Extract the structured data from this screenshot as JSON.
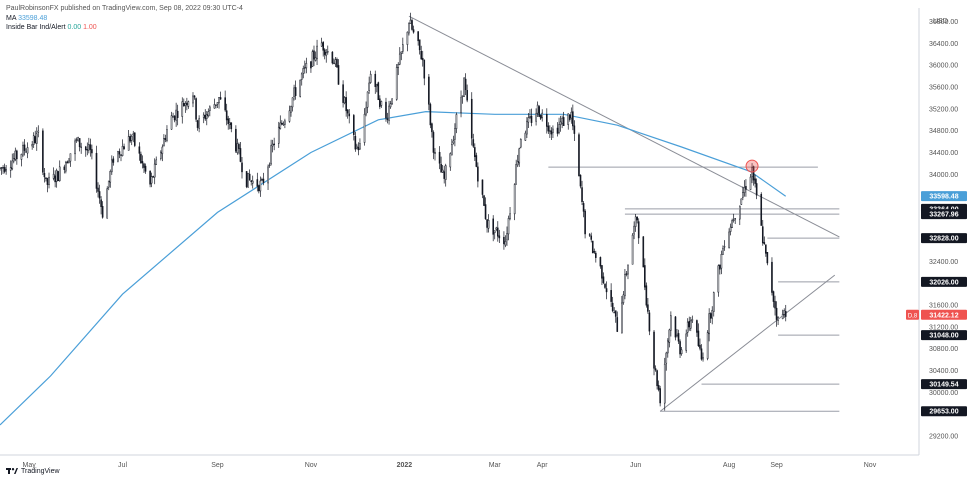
{
  "header": {
    "attribution": "PaulRobinsonFX published on TradingView.com, Sep 08, 2022 09:30 UTC-4",
    "ma_label": "MA",
    "ma_value": "33598.48",
    "ib_label": "Inside Bar Ind/Alert",
    "ib_value1": "0.00",
    "ib_value2": "1.00"
  },
  "footer": {
    "brand": "TradingView"
  },
  "colors": {
    "candle": "#131722",
    "ma": "#4a9fd8",
    "trend": "#8a8d96",
    "hline": "#9a9ea8",
    "badge_dark": "#131722",
    "price_badge": "#ef5350",
    "ma_badge": "#4a9fd8",
    "circle": "#ef5350"
  },
  "chart_data": {
    "type": "candlestick",
    "currency": "USD",
    "y_ticks": [
      36800,
      36400,
      36000,
      35600,
      35200,
      34800,
      34400,
      34000,
      32400,
      31600,
      31200,
      30800,
      30400,
      30000,
      29200
    ],
    "y_range": [
      28850,
      37050
    ],
    "x_ticks": [
      {
        "label": "May",
        "date": "2021-05-01"
      },
      {
        "label": "Jul",
        "date": "2021-07-01"
      },
      {
        "label": "Sep",
        "date": "2021-09-01"
      },
      {
        "label": "Nov",
        "date": "2021-11-01"
      },
      {
        "label": "2022",
        "date": "2022-01-01",
        "bold": true
      },
      {
        "label": "Mar",
        "date": "2022-03-01"
      },
      {
        "label": "Apr",
        "date": "2022-04-01"
      },
      {
        "label": "Jun",
        "date": "2022-06-01"
      },
      {
        "label": "Aug",
        "date": "2022-08-01"
      },
      {
        "label": "Sep",
        "date": "2022-09-01"
      },
      {
        "label": "Nov",
        "date": "2022-11-01"
      }
    ],
    "x_range": [
      "2021-04-12",
      "2022-12-03"
    ],
    "price_path": [
      [
        "2021-04-12",
        34100
      ],
      [
        "2021-04-22",
        34300
      ],
      [
        "2021-05-07",
        34700
      ],
      [
        "2021-05-12",
        33800
      ],
      [
        "2021-05-20",
        34000
      ],
      [
        "2021-06-01",
        34600
      ],
      [
        "2021-06-10",
        34400
      ],
      [
        "2021-06-18",
        33300
      ],
      [
        "2021-06-25",
        34300
      ],
      [
        "2021-07-07",
        34700
      ],
      [
        "2021-07-19",
        33800
      ],
      [
        "2021-08-01",
        35000
      ],
      [
        "2021-08-16",
        35500
      ],
      [
        "2021-08-19",
        34900
      ],
      [
        "2021-09-02",
        35400
      ],
      [
        "2021-09-10",
        34800
      ],
      [
        "2021-09-20",
        33900
      ],
      [
        "2021-09-30",
        33800
      ],
      [
        "2021-10-08",
        34600
      ],
      [
        "2021-10-26",
        35800
      ],
      [
        "2021-11-08",
        36400
      ],
      [
        "2021-11-16",
        36100
      ],
      [
        "2021-11-30",
        34500
      ],
      [
        "2021-12-03",
        34500
      ],
      [
        "2021-12-10",
        35900
      ],
      [
        "2021-12-20",
        35000
      ],
      [
        "2022-01-04",
        36800
      ],
      [
        "2022-01-13",
        36100
      ],
      [
        "2022-01-21",
        34300
      ],
      [
        "2022-01-27",
        33900
      ],
      [
        "2022-02-09",
        35700
      ],
      [
        "2022-02-14",
        34600
      ],
      [
        "2022-02-24",
        33100
      ],
      [
        "2022-03-08",
        32800
      ],
      [
        "2022-03-18",
        34700
      ],
      [
        "2022-03-29",
        35200
      ],
      [
        "2022-04-08",
        34800
      ],
      [
        "2022-04-20",
        35100
      ],
      [
        "2022-04-29",
        33000
      ],
      [
        "2022-05-10",
        32200
      ],
      [
        "2022-05-20",
        31200
      ],
      [
        "2022-05-30",
        32900
      ],
      [
        "2022-06-02",
        33200
      ],
      [
        "2022-06-13",
        30500
      ],
      [
        "2022-06-17",
        29900
      ],
      [
        "2022-06-24",
        31400
      ],
      [
        "2022-06-30",
        30800
      ],
      [
        "2022-07-08",
        31400
      ],
      [
        "2022-07-14",
        30600
      ],
      [
        "2022-07-29",
        32800
      ],
      [
        "2022-08-16",
        34100
      ],
      [
        "2022-08-22",
        33000
      ],
      [
        "2022-08-26",
        32300
      ],
      [
        "2022-09-02",
        31300
      ],
      [
        "2022-09-07",
        31500
      ]
    ],
    "ma_path": [
      [
        "2021-04-12",
        29400
      ],
      [
        "2021-05-15",
        30300
      ],
      [
        "2021-07-01",
        31800
      ],
      [
        "2021-09-01",
        33300
      ],
      [
        "2021-11-01",
        34400
      ],
      [
        "2021-12-15",
        35000
      ],
      [
        "2022-01-15",
        35150
      ],
      [
        "2022-03-01",
        35100
      ],
      [
        "2022-04-15",
        35100
      ],
      [
        "2022-05-20",
        34900
      ],
      [
        "2022-07-01",
        34500
      ],
      [
        "2022-08-15",
        34050
      ],
      [
        "2022-09-07",
        33598
      ]
    ],
    "trendlines": [
      {
        "from": [
          "2022-01-04",
          36900
        ],
        "to": [
          "2022-10-12",
          32850
        ]
      },
      {
        "from": [
          "2022-06-17",
          29650
        ],
        "to": [
          "2022-10-09",
          32150
        ]
      }
    ],
    "horizontal_levels": [
      {
        "from": "2022-04-05",
        "to": "2022-09-28",
        "value": 34130
      },
      {
        "from": "2022-05-25",
        "to": "2022-10-12",
        "value": 33364
      },
      {
        "from": "2022-05-25",
        "to": "2022-10-12",
        "value": 33267.96
      },
      {
        "from": "2022-08-26",
        "to": "2022-10-12",
        "value": 32828
      },
      {
        "from": "2022-09-02",
        "to": "2022-10-12",
        "value": 32026
      },
      {
        "from": "2022-09-02",
        "to": "2022-10-12",
        "value": 31048
      },
      {
        "from": "2022-07-14",
        "to": "2022-10-12",
        "value": 30149.54
      },
      {
        "from": "2022-06-17",
        "to": "2022-10-12",
        "value": 29653
      }
    ],
    "highlight_circle": [
      "2022-08-16",
      34150
    ],
    "price_badges": [
      {
        "label": "33598.48",
        "value": 33598.48,
        "style": "ma"
      },
      {
        "label": "33364.00",
        "value": 33364,
        "style": "dark"
      },
      {
        "label": "33267.96",
        "value": 33267.96,
        "style": "dark"
      },
      {
        "label": "32828.00",
        "value": 32828,
        "style": "dark"
      },
      {
        "label": "32026.00",
        "value": 32026,
        "style": "dark"
      },
      {
        "label": "31422.12",
        "value": 31422.12,
        "style": "price",
        "tag": "D,8"
      },
      {
        "label": "31048.00",
        "value": 31048,
        "style": "dark"
      },
      {
        "label": "30149.54",
        "value": 30149.54,
        "style": "dark"
      },
      {
        "label": "29653.00",
        "value": 29653,
        "style": "dark"
      }
    ]
  }
}
